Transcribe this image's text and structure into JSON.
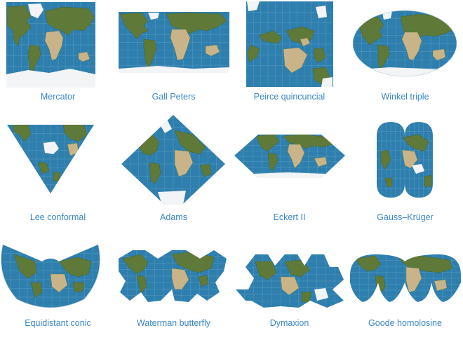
{
  "colors": {
    "ocean": "#2e7fae",
    "ocean_light": "#4b98c2",
    "land_green": "#5f7a38",
    "land_dark": "#3f5a26",
    "desert": "#c9b48a",
    "ice": "#f2f4f6",
    "graticule": "#8ec0dc",
    "label": "#3a86c8"
  },
  "projections": [
    {
      "label": "Mercator",
      "icon": "map-thumbnail"
    },
    {
      "label": "Gall Peters",
      "icon": "map-thumbnail"
    },
    {
      "label": "Peirce quincuncial",
      "icon": "map-thumbnail"
    },
    {
      "label": "Winkel triple",
      "icon": "map-thumbnail"
    },
    {
      "label": "Lee conformal",
      "icon": "map-thumbnail"
    },
    {
      "label": "Adams",
      "icon": "map-thumbnail"
    },
    {
      "label": "Eckert II",
      "icon": "map-thumbnail"
    },
    {
      "label": "Gauss–Krüger",
      "icon": "map-thumbnail"
    },
    {
      "label": "Equidistant conic",
      "icon": "map-thumbnail"
    },
    {
      "label": "Waterman butterfly",
      "icon": "map-thumbnail"
    },
    {
      "label": "Dymaxion",
      "icon": "map-thumbnail"
    },
    {
      "label": "Goode homolosine",
      "icon": "map-thumbnail"
    }
  ]
}
